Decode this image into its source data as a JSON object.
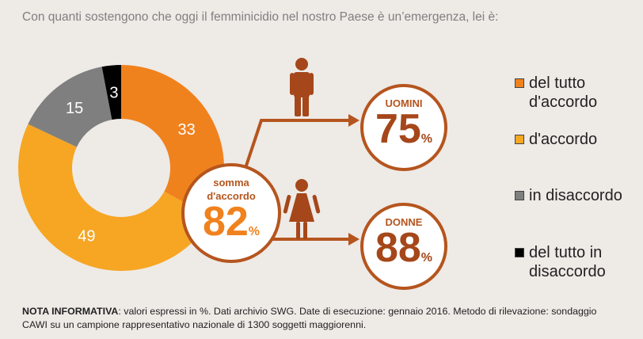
{
  "title": "Con quanti sostengono che oggi il femminicidio nel nostro Paese è un’emergenza, lei è:",
  "chart_data": {
    "type": "pie",
    "categories": [
      "del tutto d'accordo",
      "d'accordo",
      "in disaccordo",
      "del tutto in disaccordo"
    ],
    "values": [
      33,
      49,
      15,
      3
    ],
    "colors": [
      "#f0821e",
      "#f6a623",
      "#7f7f7f",
      "#000000"
    ],
    "label_colors": [
      "#ffffff",
      "#ffffff",
      "#ffffff",
      "#ffffff"
    ],
    "donut": true
  },
  "legend": [
    {
      "label": "del tutto d'accordo",
      "color": "#f0821e"
    },
    {
      "label": "d'accordo",
      "color": "#f6a623"
    },
    {
      "label": "in disaccordo",
      "color": "#7f7f7f"
    },
    {
      "label": "del tutto in disaccordo",
      "color": "#000000"
    }
  ],
  "sum": {
    "label_line1": "somma",
    "label_line2": "d'accordo",
    "value": "82",
    "unit": "%"
  },
  "men": {
    "label": "UOMINI",
    "value": "75",
    "unit": "%"
  },
  "women": {
    "label": "DONNE",
    "value": "88",
    "unit": "%"
  },
  "accent_color": "#b5551e",
  "note": {
    "bold": "NOTA INFORMATIVA",
    "text": ": valori espressi in %. Dati archivio SWG. Date di esecuzione: gennaio 2016. Metodo di rilevazione: sondaggio CAWI su un campione rappresentativo nazionale di 1300 soggetti maggiorenni."
  }
}
